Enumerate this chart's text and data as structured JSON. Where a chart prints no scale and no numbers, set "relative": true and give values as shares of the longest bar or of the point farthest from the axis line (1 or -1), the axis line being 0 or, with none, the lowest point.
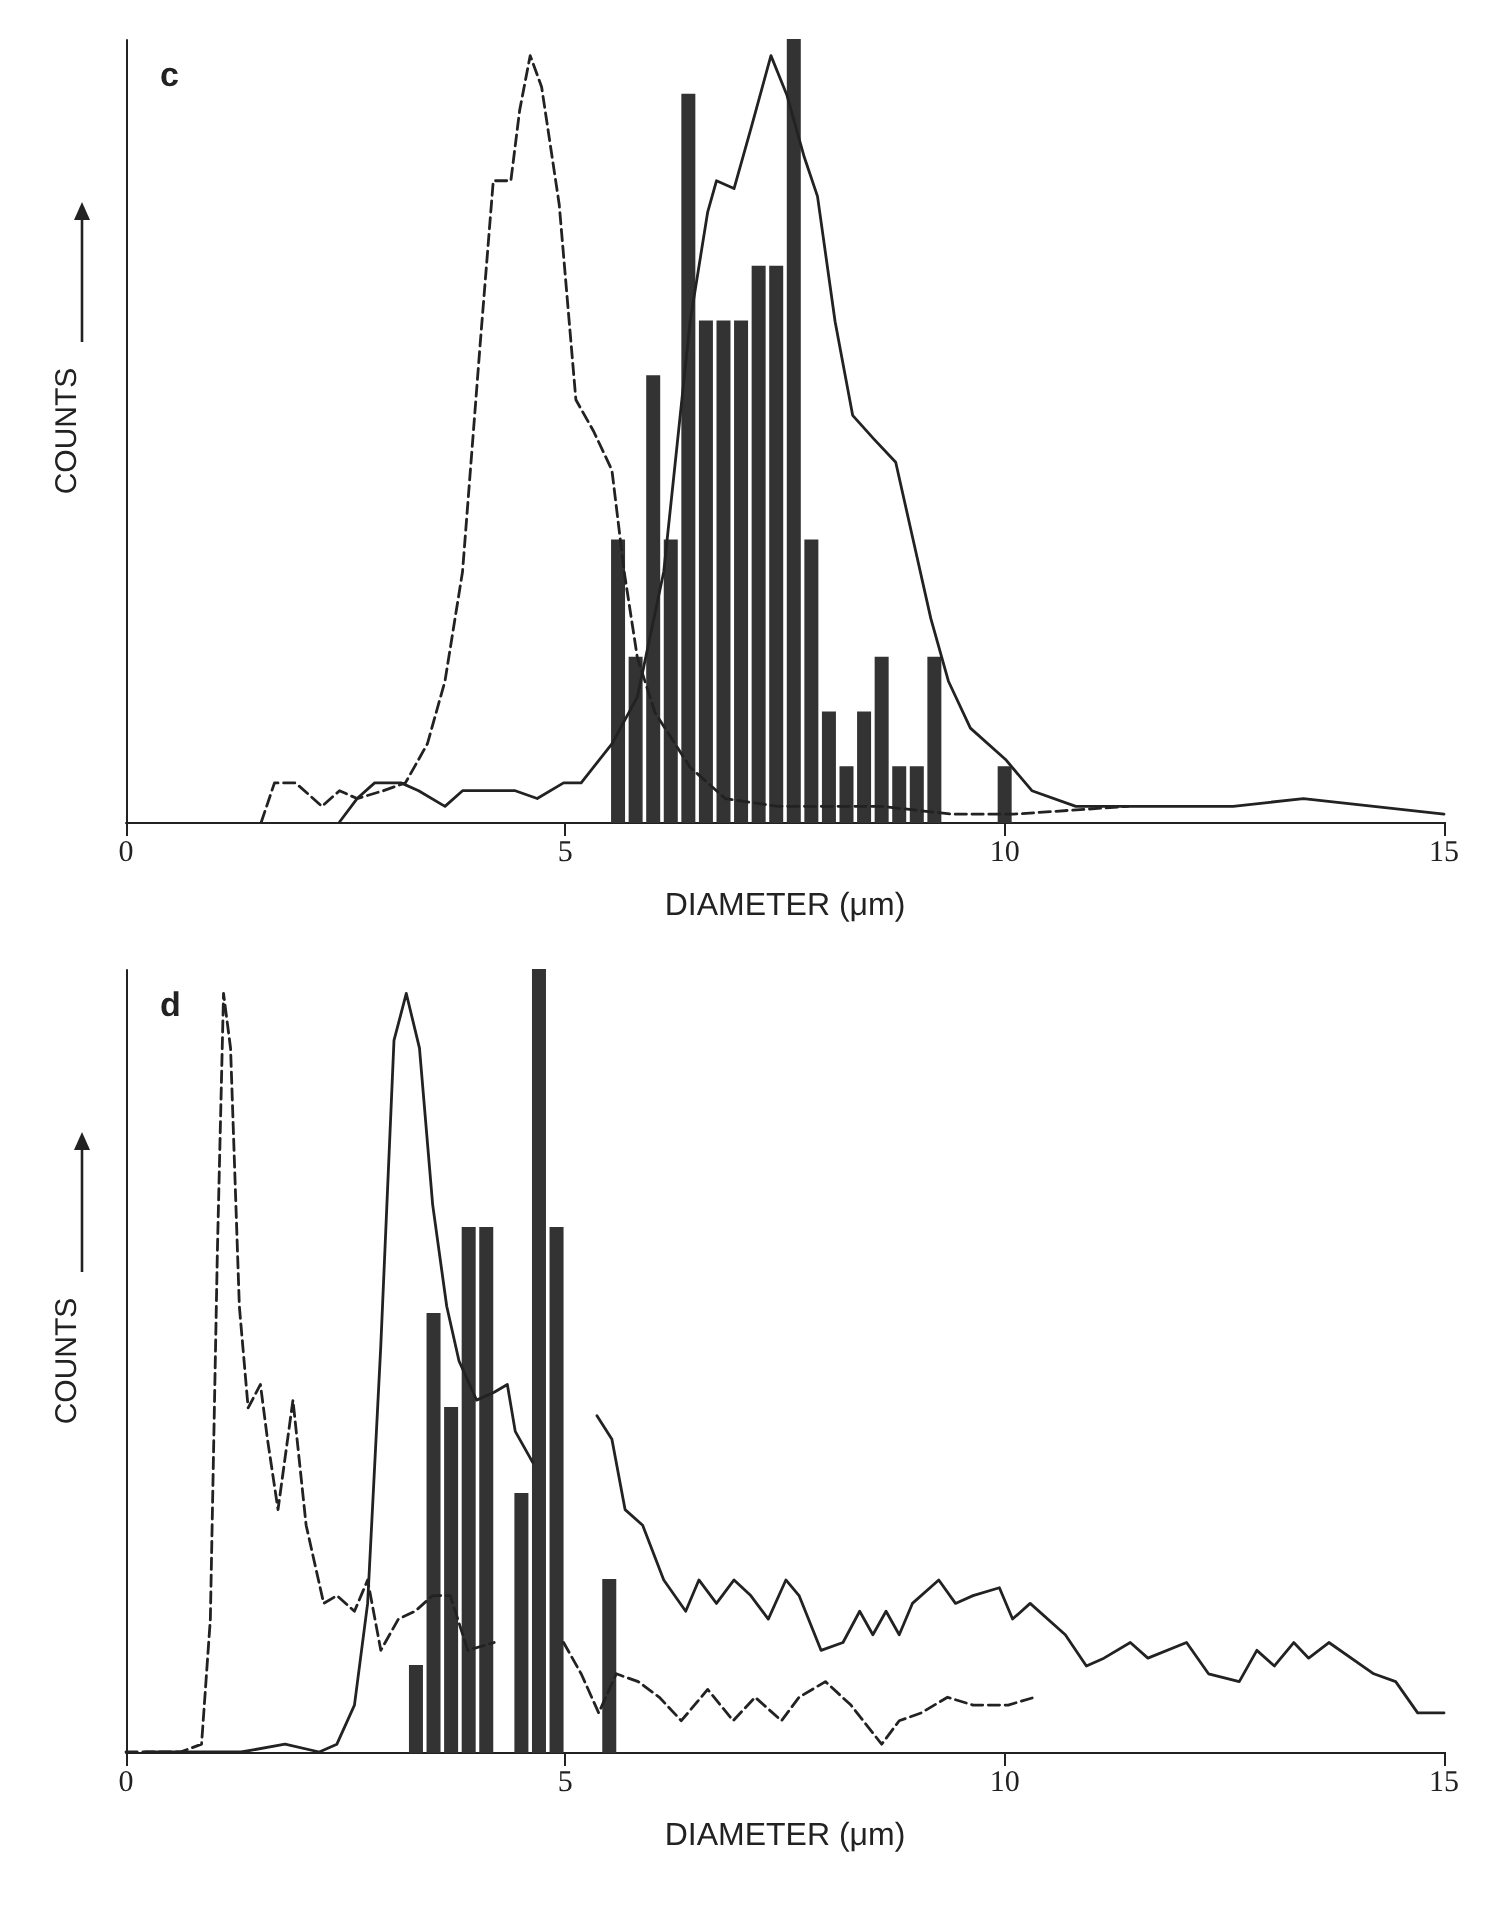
{
  "chart_data": [
    {
      "type": "bar",
      "title": "c",
      "xlabel": "DIAMETER (μm)",
      "ylabel": "COUNTS",
      "relative": true,
      "marker": "none",
      "xlim": [
        0,
        15
      ],
      "xticks": [
        0,
        5,
        10,
        15
      ],
      "series": [
        {
          "color": "#333333",
          "x": [
            5.6,
            5.8,
            6.0,
            6.2,
            6.4,
            6.6,
            6.8,
            7.0,
            7.2,
            7.4,
            7.6,
            7.8,
            8.0,
            8.2,
            8.4,
            8.6,
            8.8,
            9.0,
            9.2,
            10.0
          ],
          "values": [
            0.36,
            0.21,
            0.57,
            0.36,
            0.93,
            0.64,
            0.64,
            0.64,
            0.71,
            0.71,
            1,
            0.36,
            0.14,
            0.07,
            0.14,
            0.21,
            0.07,
            0.07,
            0.21,
            0.07
          ]
        },
        {
          "type": "line",
          "color": "#222222",
          "line_style": "solid",
          "x": [
            2.43,
            2.63,
            2.83,
            3.13,
            3.33,
            3.63,
            3.83,
            4.23,
            4.43,
            4.68,
            4.98,
            5.18,
            5.53,
            5.82,
            6.12,
            6.42,
            6.62,
            6.72,
            6.92,
            7.12,
            7.34,
            7.52,
            7.72,
            7.87,
            8.07,
            8.27,
            8.51,
            8.76,
            8.96,
            9.16,
            9.36,
            9.61,
            10.01,
            10.31,
            10.81,
            11.6,
            12.6,
            13.4,
            14.2,
            15
          ],
          "values": [
            0,
            0.03,
            0.05,
            0.05,
            0.04,
            0.02,
            0.04,
            0.04,
            0.04,
            0.03,
            0.05,
            0.05,
            0.1,
            0.16,
            0.32,
            0.64,
            0.78,
            0.82,
            0.81,
            0.89,
            0.98,
            0.93,
            0.85,
            0.8,
            0.64,
            0.52,
            0.49,
            0.46,
            0.36,
            0.26,
            0.18,
            0.12,
            0.08,
            0.04,
            0.02,
            0.02,
            0.02,
            0.03,
            0.02,
            0.01
          ]
        },
        {
          "type": "line",
          "color": "#222222",
          "line_style": "dashed",
          "x": [
            1.54,
            1.69,
            1.93,
            2.23,
            2.43,
            2.63,
            2.93,
            3.18,
            3.43,
            3.63,
            3.83,
            4.03,
            4.18,
            4.38,
            4.48,
            4.6,
            4.73,
            4.93,
            5.12,
            5.32,
            5.53,
            5.67,
            5.82,
            6.02,
            6.42,
            6.82,
            7.42,
            8.6,
            9.4,
            10.1,
            11.4
          ],
          "values": [
            0,
            0.05,
            0.05,
            0.02,
            0.04,
            0.03,
            0.04,
            0.05,
            0.1,
            0.18,
            0.32,
            0.61,
            0.82,
            0.82,
            0.91,
            0.98,
            0.94,
            0.79,
            0.54,
            0.5,
            0.45,
            0.32,
            0.21,
            0.14,
            0.07,
            0.03,
            0.02,
            0.02,
            0.01,
            0.01,
            0.02
          ]
        }
      ]
    },
    {
      "type": "bar",
      "title": "d",
      "xlabel": "DIAMETER (μm)",
      "ylabel": "COUNTS",
      "relative": true,
      "marker": "none",
      "xlim": [
        0,
        15
      ],
      "xticks": [
        0,
        5,
        10,
        15
      ],
      "series": [
        {
          "color": "#333333",
          "x": [
            3.3,
            3.5,
            3.7,
            3.9,
            4.1,
            4.5,
            4.7,
            4.9,
            5.5
          ],
          "values": [
            0.11,
            0.56,
            0.44,
            0.67,
            0.67,
            0.33,
            1,
            0.67,
            0.22
          ]
        },
        {
          "type": "line",
          "color": "#222222",
          "line_style": "solid",
          "x": [
            0.22,
            0.81,
            1.31,
            1.81,
            2.2,
            2.4,
            2.6,
            2.75,
            2.9,
            3.05,
            3.19,
            3.34,
            3.49,
            3.65,
            3.79,
            3.99,
            4.19,
            4.34,
            4.43,
            4.63,
            5.0,
            5.36,
            5.53,
            5.68,
            5.88,
            6.12,
            6.37,
            6.52,
            6.72,
            6.92,
            7.11,
            7.31,
            7.51,
            7.66,
            7.91,
            8.16,
            8.35,
            8.5,
            8.65,
            8.8,
            8.95,
            9.25,
            9.44,
            9.64,
            9.94,
            10.09,
            10.29,
            10.69,
            10.93,
            11.13,
            11.43,
            11.63,
            12.07,
            12.32,
            12.67,
            12.87,
            13.07,
            13.29,
            13.46,
            13.69,
            14.2,
            14.45,
            14.7,
            15
          ],
          "values": [
            0,
            0,
            0,
            0.01,
            0,
            0.01,
            0.06,
            0.19,
            0.52,
            0.91,
            0.97,
            0.9,
            0.7,
            0.57,
            0.5,
            0.45,
            0.46,
            0.47,
            0.41,
            0.37,
            null,
            0.43,
            0.4,
            0.31,
            0.29,
            0.22,
            0.18,
            0.22,
            0.19,
            0.22,
            0.2,
            0.17,
            0.22,
            0.2,
            0.13,
            0.14,
            0.18,
            0.15,
            0.18,
            0.15,
            0.19,
            0.22,
            0.19,
            0.2,
            0.21,
            0.17,
            0.19,
            0.15,
            0.11,
            0.12,
            0.14,
            0.12,
            0.14,
            0.1,
            0.09,
            0.13,
            0.11,
            0.14,
            0.12,
            0.14,
            0.1,
            0.09,
            0.05,
            0.05
          ]
        },
        {
          "type": "line",
          "color": "#222222",
          "line_style": "dashed",
          "x": [
            0,
            0.62,
            0.86,
            0.96,
            1.04,
            1.11,
            1.19,
            1.29,
            1.39,
            1.53,
            1.61,
            1.73,
            1.9,
            2.05,
            2.25,
            2.4,
            2.6,
            2.75,
            2.9,
            3.1,
            3.29,
            3.49,
            3.69,
            3.89,
            4.19,
            4.6,
            4.98,
            5.18,
            5.38,
            5.58,
            5.83,
            6.07,
            6.32,
            6.62,
            6.91,
            7.16,
            7.46,
            7.66,
            7.96,
            8.25,
            8.6,
            8.8,
            9.05,
            9.35,
            9.64,
            10.04,
            10.34
          ],
          "values": [
            0,
            0,
            0.01,
            0.17,
            0.64,
            0.97,
            0.9,
            0.57,
            0.44,
            0.47,
            0.4,
            0.31,
            0.45,
            0.29,
            0.19,
            0.2,
            0.18,
            0.22,
            0.13,
            0.17,
            0.18,
            0.2,
            0.2,
            0.13,
            0.14,
            null,
            0.14,
            0.1,
            0.05,
            0.1,
            0.09,
            0.07,
            0.04,
            0.08,
            0.04,
            0.07,
            0.04,
            0.07,
            0.09,
            0.06,
            0.01,
            0.04,
            0.05,
            0.07,
            0.06,
            0.06,
            0.07
          ]
        }
      ]
    }
  ]
}
